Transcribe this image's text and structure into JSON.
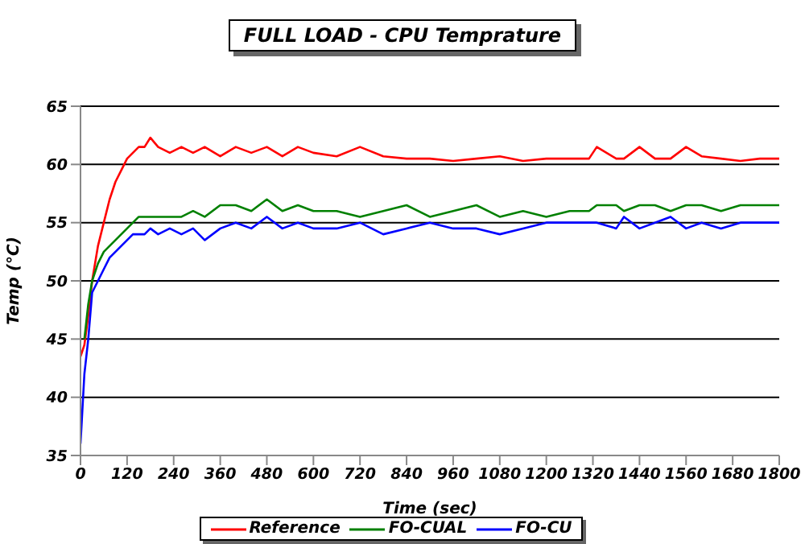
{
  "chart_data": {
    "type": "line",
    "title": "FULL LOAD - CPU Temprature",
    "xlabel": "Time (sec)",
    "ylabel": "Temp (°C)",
    "x": [
      0,
      10,
      20,
      30,
      45,
      60,
      75,
      90,
      105,
      120,
      135,
      150,
      165,
      180,
      200,
      230,
      260,
      290,
      320,
      360,
      400,
      440,
      480,
      520,
      560,
      600,
      660,
      720,
      780,
      840,
      900,
      960,
      1020,
      1080,
      1140,
      1200,
      1260,
      1310,
      1330,
      1380,
      1400,
      1440,
      1480,
      1520,
      1560,
      1600,
      1650,
      1700,
      1750,
      1800
    ],
    "series": [
      {
        "name": "Reference",
        "color": "#ff0000",
        "values": [
          43.5,
          44.5,
          47,
          50,
          53,
          55,
          57,
          58.5,
          59.5,
          60.5,
          61,
          61.5,
          61.5,
          62.3,
          61.5,
          61,
          61.5,
          61,
          61.5,
          60.7,
          61.5,
          61,
          61.5,
          60.7,
          61.5,
          61,
          60.7,
          61.5,
          60.7,
          60.5,
          60.5,
          60.3,
          60.5,
          60.7,
          60.3,
          60.5,
          60.5,
          60.5,
          61.5,
          60.5,
          60.5,
          61.5,
          60.5,
          60.5,
          61.5,
          60.7,
          60.5,
          60.3,
          60.5,
          60.5
        ]
      },
      {
        "name": "FO-CUAL",
        "color": "#008000",
        "values": [
          null,
          45,
          48,
          50,
          51.5,
          52.5,
          53,
          53.5,
          54,
          54.5,
          55,
          55.5,
          55.5,
          55.5,
          55.5,
          55.5,
          55.5,
          56,
          55.5,
          56.5,
          56.5,
          56,
          57,
          56,
          56.5,
          56,
          56,
          55.5,
          56,
          56.5,
          55.5,
          56,
          56.5,
          55.5,
          56,
          55.5,
          56,
          56,
          56.5,
          56.5,
          56,
          56.5,
          56.5,
          56,
          56.5,
          56.5,
          56,
          56.5,
          56.5,
          56.5
        ]
      },
      {
        "name": "FO-CU",
        "color": "#0000ff",
        "values": [
          36,
          42,
          45,
          49,
          50,
          51,
          52,
          52.5,
          53,
          53.5,
          54,
          54,
          54,
          54.5,
          54,
          54.5,
          54,
          54.5,
          53.5,
          54.5,
          55,
          54.5,
          55.5,
          54.5,
          55,
          54.5,
          54.5,
          55,
          54,
          54.5,
          55,
          54.5,
          54.5,
          54,
          54.5,
          55,
          55,
          55,
          55,
          54.5,
          55.5,
          54.5,
          55,
          55.5,
          54.5,
          55,
          54.5,
          55,
          55,
          55
        ]
      }
    ],
    "xlim": [
      0,
      1800
    ],
    "xticks": [
      0,
      120,
      240,
      360,
      480,
      600,
      720,
      840,
      960,
      1080,
      1200,
      1320,
      1440,
      1560,
      1680,
      1800
    ],
    "ylim": [
      35,
      65
    ],
    "yticks": [
      35,
      40,
      45,
      50,
      55,
      60,
      65
    ],
    "grid": "y",
    "legend": "bottom",
    "marker": "none",
    "line_style": "solid"
  }
}
